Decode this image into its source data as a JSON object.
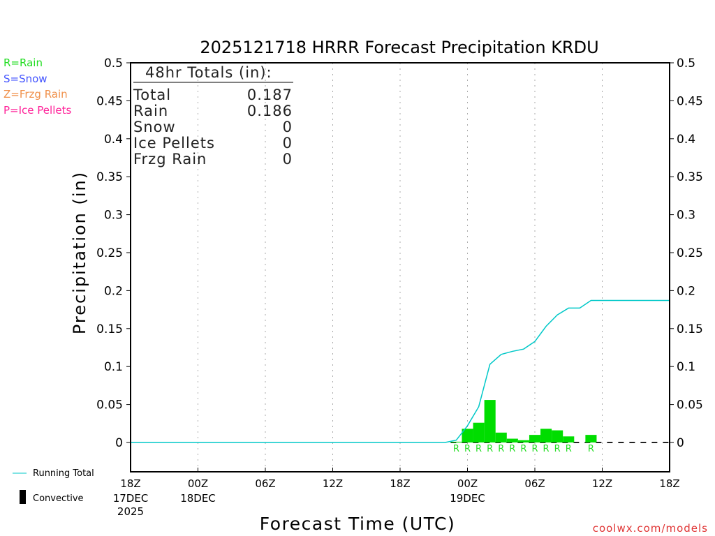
{
  "chart_data": {
    "type": "bar",
    "title": "2025121718 HRRR Forecast Precipitation KRDU",
    "xlabel": "Forecast Time (UTC)",
    "ylabel": "Precipitation (in)",
    "ylim": [
      -0.039,
      0.5
    ],
    "xlim_hours": [
      0,
      48
    ],
    "y_ticks": [
      "0",
      "0.05",
      "0.1",
      "0.15",
      "0.2",
      "0.25",
      "0.3",
      "0.35",
      "0.4",
      "0.45",
      "0.5"
    ],
    "x_ticks": [
      {
        "hour": 0,
        "label": "18Z",
        "sub": [
          "17DEC",
          "2025"
        ]
      },
      {
        "hour": 6,
        "label": "00Z",
        "sub": [
          "18DEC"
        ]
      },
      {
        "hour": 12,
        "label": "06Z",
        "sub": []
      },
      {
        "hour": 18,
        "label": "12Z",
        "sub": []
      },
      {
        "hour": 24,
        "label": "18Z",
        "sub": []
      },
      {
        "hour": 30,
        "label": "00Z",
        "sub": [
          "19DEC"
        ]
      },
      {
        "hour": 36,
        "label": "06Z",
        "sub": []
      },
      {
        "hour": 42,
        "label": "12Z",
        "sub": []
      },
      {
        "hour": 48,
        "label": "18Z",
        "sub": []
      }
    ],
    "grid": "vertical dotted",
    "bars": {
      "name": "Hourly Rain",
      "hours": [
        29,
        30,
        31,
        32,
        33,
        34,
        35,
        36,
        37,
        38,
        39,
        41
      ],
      "values": [
        0.001,
        0.018,
        0.026,
        0.056,
        0.013,
        0.005,
        0.003,
        0.01,
        0.018,
        0.016,
        0.008,
        0.01
      ],
      "type_labels": [
        "R",
        "R",
        "R",
        "R",
        "R",
        "R",
        "R",
        "R",
        "R",
        "R",
        "R",
        "R"
      ],
      "color": "#00dd00"
    },
    "running_total": {
      "name": "Running Total",
      "hours": [
        0,
        28,
        29,
        30,
        31,
        32,
        33,
        34,
        35,
        36,
        37,
        38,
        39,
        40,
        41,
        48
      ],
      "values": [
        0,
        0,
        0.003,
        0.022,
        0.047,
        0.103,
        0.116,
        0.12,
        0.123,
        0.133,
        0.153,
        0.168,
        0.177,
        0.177,
        0.187,
        0.187
      ],
      "color": "#00c8c8"
    }
  },
  "type_legend": [
    {
      "label": "R=Rain",
      "color": "#22dd22"
    },
    {
      "label": "S=Snow",
      "color": "#4455ff"
    },
    {
      "label": "Z=Frzg Rain",
      "color": "#f0904a"
    },
    {
      "label": "P=Ice Pellets",
      "color": "#ff2299"
    }
  ],
  "totals": {
    "header": "48hr Totals (in):",
    "rows": [
      {
        "label": "Total",
        "value": "0.187"
      },
      {
        "label": "Rain",
        "value": "0.186"
      },
      {
        "label": "Snow",
        "value": "0"
      },
      {
        "label": "Ice Pellets",
        "value": "0"
      },
      {
        "label": "Frzg Rain",
        "value": "0"
      }
    ]
  },
  "bottom_legend": {
    "running_total": "Running Total",
    "convective": "Convective"
  },
  "credit": "coolwx.com/models"
}
